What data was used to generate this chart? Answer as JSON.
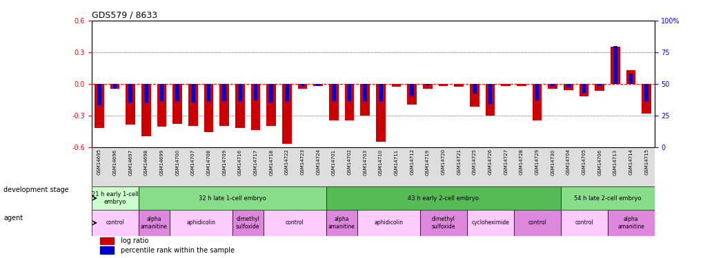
{
  "title": "GDS579 / 8633",
  "samples": [
    "GSM14695",
    "GSM14696",
    "GSM14697",
    "GSM14698",
    "GSM14699",
    "GSM14700",
    "GSM14707",
    "GSM14708",
    "GSM14709",
    "GSM14716",
    "GSM14717",
    "GSM14718",
    "GSM14722",
    "GSM14723",
    "GSM14724",
    "GSM14701",
    "GSM14702",
    "GSM14703",
    "GSM14710",
    "GSM14711",
    "GSM14712",
    "GSM14719",
    "GSM14720",
    "GSM14721",
    "GSM14725",
    "GSM14726",
    "GSM14727",
    "GSM14728",
    "GSM14729",
    "GSM14730",
    "GSM14704",
    "GSM14705",
    "GSM14706",
    "GSM14713",
    "GSM14714",
    "GSM14715"
  ],
  "log_ratio": [
    -0.42,
    -0.05,
    -0.39,
    -0.5,
    -0.41,
    -0.38,
    -0.4,
    -0.46,
    -0.4,
    -0.42,
    -0.44,
    -0.4,
    -0.57,
    -0.05,
    -0.02,
    -0.35,
    -0.35,
    -0.3,
    -0.55,
    -0.03,
    -0.2,
    -0.05,
    -0.02,
    -0.03,
    -0.22,
    -0.3,
    -0.02,
    -0.02,
    -0.35,
    -0.05,
    -0.06,
    -0.12,
    -0.07,
    0.35,
    0.13,
    -0.28
  ],
  "percentile": [
    33,
    46,
    35,
    35,
    36,
    36,
    35,
    36,
    36,
    36,
    37,
    35,
    36,
    48,
    48,
    36,
    36,
    36,
    36,
    50,
    40,
    49,
    50,
    50,
    42,
    34,
    50,
    50,
    37,
    48,
    47,
    43,
    48,
    80,
    58,
    36
  ],
  "ylim_left": [
    -0.6,
    0.6
  ],
  "ylim_right": [
    0,
    100
  ],
  "yticks_left": [
    -0.6,
    -0.3,
    0.0,
    0.3,
    0.6
  ],
  "yticks_right": [
    0,
    25,
    50,
    75,
    100
  ],
  "bar_color_red": "#cc0000",
  "bar_color_blue": "#0000cc",
  "development_stages": [
    {
      "label": "21 h early 1-cell\nembryo",
      "start": 0,
      "end": 3,
      "color": "#ccffcc"
    },
    {
      "label": "32 h late 1-cell embryo",
      "start": 3,
      "end": 15,
      "color": "#88dd88"
    },
    {
      "label": "43 h early 2-cell embryo",
      "start": 15,
      "end": 30,
      "color": "#55bb55"
    },
    {
      "label": "54 h late 2-cell embryo",
      "start": 30,
      "end": 36,
      "color": "#88dd88"
    }
  ],
  "agents": [
    {
      "label": "control",
      "start": 0,
      "end": 3,
      "color": "#ffccff"
    },
    {
      "label": "alpha\namanitine",
      "start": 3,
      "end": 5,
      "color": "#dd88dd"
    },
    {
      "label": "aphidicolin",
      "start": 5,
      "end": 9,
      "color": "#ffccff"
    },
    {
      "label": "dimethyl\nsulfoxide",
      "start": 9,
      "end": 11,
      "color": "#dd88dd"
    },
    {
      "label": "control",
      "start": 11,
      "end": 15,
      "color": "#ffccff"
    },
    {
      "label": "alpha\namanitine",
      "start": 15,
      "end": 17,
      "color": "#dd88dd"
    },
    {
      "label": "aphidicolin",
      "start": 17,
      "end": 21,
      "color": "#ffccff"
    },
    {
      "label": "dimethyl\nsulfoxide",
      "start": 21,
      "end": 24,
      "color": "#dd88dd"
    },
    {
      "label": "cycloheximide",
      "start": 24,
      "end": 27,
      "color": "#ffccff"
    },
    {
      "label": "control",
      "start": 27,
      "end": 30,
      "color": "#dd88dd"
    },
    {
      "label": "control",
      "start": 30,
      "end": 33,
      "color": "#ffccff"
    },
    {
      "label": "alpha\namanitine",
      "start": 33,
      "end": 36,
      "color": "#dd88dd"
    }
  ]
}
